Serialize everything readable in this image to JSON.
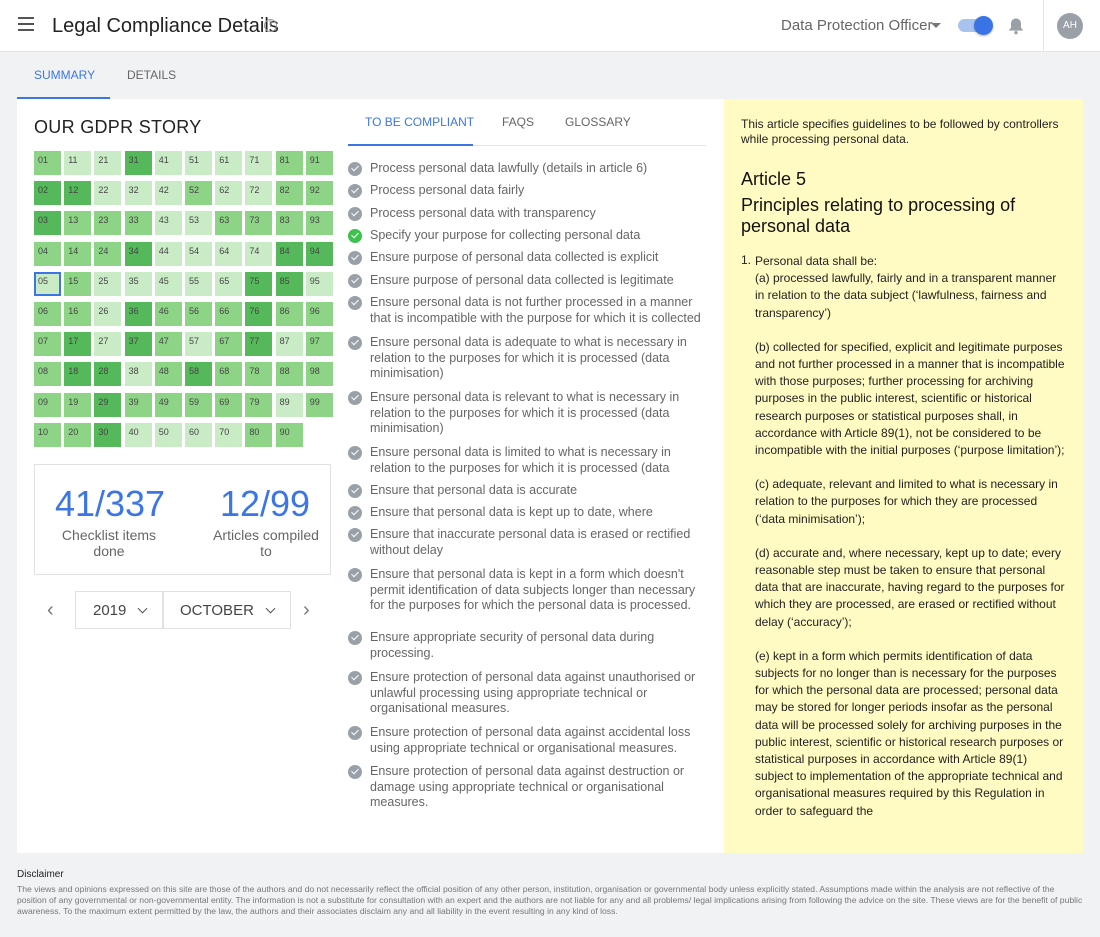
{
  "header": {
    "title": "Legal Compliance Details",
    "role": "Data Protection Officer",
    "avatar_initials": "AH"
  },
  "tabs": [
    {
      "label": "SUMMARY",
      "active": true
    },
    {
      "label": "DETAILS",
      "active": false
    }
  ],
  "story": {
    "title": "OUR GDPR STORY",
    "selected_cell": "05",
    "colors": {
      "light": "#c9ecc6",
      "medium": "#8ed487",
      "dark": "#55b85a",
      "selection": "#3c76e4"
    },
    "columns": [
      [
        {
          "n": "01",
          "s": 2
        },
        {
          "n": "02",
          "s": 3
        },
        {
          "n": "03",
          "s": 3
        },
        {
          "n": "04",
          "s": 2
        },
        {
          "n": "05",
          "s": 1
        },
        {
          "n": "06",
          "s": 2
        },
        {
          "n": "07",
          "s": 2
        },
        {
          "n": "08",
          "s": 2
        },
        {
          "n": "09",
          "s": 2
        },
        {
          "n": "10",
          "s": 2
        }
      ],
      [
        {
          "n": "11",
          "s": 1
        },
        {
          "n": "12",
          "s": 3
        },
        {
          "n": "13",
          "s": 2
        },
        {
          "n": "14",
          "s": 2
        },
        {
          "n": "15",
          "s": 2
        },
        {
          "n": "16",
          "s": 2
        },
        {
          "n": "17",
          "s": 3
        },
        {
          "n": "18",
          "s": 3
        },
        {
          "n": "19",
          "s": 2
        },
        {
          "n": "20",
          "s": 2
        }
      ],
      [
        {
          "n": "21",
          "s": 1
        },
        {
          "n": "22",
          "s": 1
        },
        {
          "n": "23",
          "s": 2
        },
        {
          "n": "24",
          "s": 2
        },
        {
          "n": "25",
          "s": 1
        },
        {
          "n": "26",
          "s": 1
        },
        {
          "n": "27",
          "s": 1
        },
        {
          "n": "28",
          "s": 3
        },
        {
          "n": "29",
          "s": 3
        },
        {
          "n": "30",
          "s": 3
        }
      ],
      [
        {
          "n": "31",
          "s": 3
        },
        {
          "n": "32",
          "s": 1
        },
        {
          "n": "33",
          "s": 2
        },
        {
          "n": "34",
          "s": 3
        },
        {
          "n": "35",
          "s": 1
        },
        {
          "n": "36",
          "s": 3
        },
        {
          "n": "37",
          "s": 3
        },
        {
          "n": "38",
          "s": 1
        },
        {
          "n": "39",
          "s": 2
        },
        {
          "n": "40",
          "s": 1
        }
      ],
      [
        {
          "n": "41",
          "s": 1
        },
        {
          "n": "42",
          "s": 1
        },
        {
          "n": "43",
          "s": 1
        },
        {
          "n": "44",
          "s": 1
        },
        {
          "n": "45",
          "s": 1
        },
        {
          "n": "46",
          "s": 2
        },
        {
          "n": "47",
          "s": 2
        },
        {
          "n": "48",
          "s": 2
        },
        {
          "n": "49",
          "s": 2
        },
        {
          "n": "50",
          "s": 1
        }
      ],
      [
        {
          "n": "51",
          "s": 1
        },
        {
          "n": "52",
          "s": 2
        },
        {
          "n": "53",
          "s": 1
        },
        {
          "n": "54",
          "s": 1
        },
        {
          "n": "55",
          "s": 1
        },
        {
          "n": "56",
          "s": 2
        },
        {
          "n": "57",
          "s": 1
        },
        {
          "n": "58",
          "s": 3
        },
        {
          "n": "59",
          "s": 2
        },
        {
          "n": "60",
          "s": 1
        }
      ],
      [
        {
          "n": "61",
          "s": 1
        },
        {
          "n": "62",
          "s": 1
        },
        {
          "n": "63",
          "s": 2
        },
        {
          "n": "64",
          "s": 1
        },
        {
          "n": "65",
          "s": 1
        },
        {
          "n": "66",
          "s": 2
        },
        {
          "n": "67",
          "s": 2
        },
        {
          "n": "68",
          "s": 2
        },
        {
          "n": "69",
          "s": 2
        },
        {
          "n": "70",
          "s": 1
        }
      ],
      [
        {
          "n": "71",
          "s": 1
        },
        {
          "n": "72",
          "s": 1
        },
        {
          "n": "73",
          "s": 2
        },
        {
          "n": "74",
          "s": 1
        },
        {
          "n": "75",
          "s": 3
        },
        {
          "n": "76",
          "s": 3
        },
        {
          "n": "77",
          "s": 3
        },
        {
          "n": "78",
          "s": 2
        },
        {
          "n": "79",
          "s": 2
        },
        {
          "n": "80",
          "s": 2
        }
      ],
      [
        {
          "n": "81",
          "s": 2
        },
        {
          "n": "82",
          "s": 2
        },
        {
          "n": "83",
          "s": 2
        },
        {
          "n": "84",
          "s": 3
        },
        {
          "n": "85",
          "s": 3
        },
        {
          "n": "86",
          "s": 2
        },
        {
          "n": "87",
          "s": 1
        },
        {
          "n": "88",
          "s": 2
        },
        {
          "n": "89",
          "s": 1
        },
        {
          "n": "90",
          "s": 2
        }
      ],
      [
        {
          "n": "91",
          "s": 2
        },
        {
          "n": "92",
          "s": 2
        },
        {
          "n": "93",
          "s": 2
        },
        {
          "n": "94",
          "s": 3
        },
        {
          "n": "95",
          "s": 1
        },
        {
          "n": "96",
          "s": 2
        },
        {
          "n": "97",
          "s": 2
        },
        {
          "n": "98",
          "s": 2
        },
        {
          "n": "99",
          "s": 2
        }
      ]
    ]
  },
  "stats": {
    "checklist_value": "41/337",
    "checklist_label": "Checklist items done",
    "articles_value": "12/99",
    "articles_label": "Articles compiled to"
  },
  "date_picker": {
    "year": "2019",
    "month": "OCTOBER"
  },
  "mid_tabs": [
    {
      "label": "TO BE COMPLIANT",
      "active": true
    },
    {
      "label": "FAQS",
      "active": false
    },
    {
      "label": "GLOSSARY",
      "active": false
    }
  ],
  "checklist": [
    {
      "text": "Process personal data lawfully (details in article 6)",
      "done": false
    },
    {
      "text": "Process personal data fairly",
      "done": false
    },
    {
      "text": "Process personal data with transparency",
      "done": false
    },
    {
      "text": "Specify your purpose for collecting personal data",
      "done": true
    },
    {
      "text": "Ensure purpose of personal data collected is explicit",
      "done": false
    },
    {
      "text": "Ensure purpose of personal data collected is legitimate",
      "done": false
    },
    {
      "text": "Ensure personal data is not further processed in a manner that is incompatible with the purpose for which it is collected",
      "done": false
    },
    {
      "text": "Ensure personal data is adequate to what is necessary in relation to the purposes for which it is processed (data minimisation)",
      "done": false
    },
    {
      "text": "Ensure personal data is relevant to what is necessary in relation to the purposes for which it is processed (data minimisation)",
      "done": false
    },
    {
      "text": "Ensure personal data is limited to what is necessary in relation to the purposes for which it is processed (data",
      "done": false
    },
    {
      "text": "Ensure that personal data is accurate",
      "done": false
    },
    {
      "text": "Ensure that personal data is kept up to date, where necessary",
      "done": false
    },
    {
      "text": "Ensure that inaccurate personal data is erased or rectified without delay",
      "done": false
    },
    {
      "text": "Ensure that personal data is kept in a form which doesn't permit identification of data subjects longer than necessary for the purposes for which the personal data is processed.",
      "done": false
    },
    {
      "text": "Ensure appropriate security of personal data during processing.",
      "done": false
    },
    {
      "text": "Ensure protection of personal data against unauthorised or unlawful processing using appropriate technical or organisational measures.",
      "done": false
    },
    {
      "text": "Ensure protection of personal data against accidental loss using appropriate technical or organisational measures.",
      "done": false
    },
    {
      "text": "Ensure protection of personal data against destruction or damage using appropriate technical or organisational measures.",
      "done": false
    }
  ],
  "article": {
    "intro": "This article specifies guidelines to be followed by controllers while processing personal data.",
    "number": "Article 5",
    "title": "Principles relating to processing of personal data",
    "list_marker": "1.",
    "lead": "Personal data shall be:",
    "points": [
      "(a)  processed lawfully, fairly and in a transparent manner in relation to the data subject (‘lawfulness, fairness and transparency’)",
      "(b)  collected for specified, explicit and legitimate purposes and not further processed in a manner that is incompatible with those purposes; further processing for archiving purposes in the public interest, scientific or historical research purposes or statistical purposes shall, in accordance with Article 89(1), not be considered to be incompatible with the initial purposes (‘purpose limitation’);",
      "(c)  adequate, relevant and limited to what is necessary in relation to the purposes for which they are processed (‘data minimisation’);",
      "(d)  accurate and, where necessary, kept up to date; every reasonable step must be taken to ensure that personal data that are inaccurate, having regard to the purposes for which they are processed, are erased or rectified without delay (‘accuracy’);",
      "(e)  kept in a form which permits identification of data subjects for no longer than is necessary for the purposes for which the personal data are processed; personal data may be stored for longer periods insofar as the personal data will be processed solely for archiving purposes in the public interest, scientific or historical research purposes or statistical purposes in accordance with Article 89(1) subject to implementation of the appropriate technical and organisational measures required by this Regulation in order to safeguard the"
    ]
  },
  "disclaimer": {
    "title": "Disclaimer",
    "text": "The views and opinions expressed on this site are those of the authors and do not necessarily reflect the official position of any other person, institution, organisation or governmental body unless explicitly stated. Assumptions made within the analysis are not reflective of the position of any governmental or non-governmental entity. The information is not a substitute for consultation with an expert and the authors are not liable for any and all problems/ legal implications arising from following the advice on the site. These views are for the benefit of public awareness. To the maximum extent permitted by the law, the authors and their associates disclaim any and all liability in the event resulting in any kind of loss."
  }
}
